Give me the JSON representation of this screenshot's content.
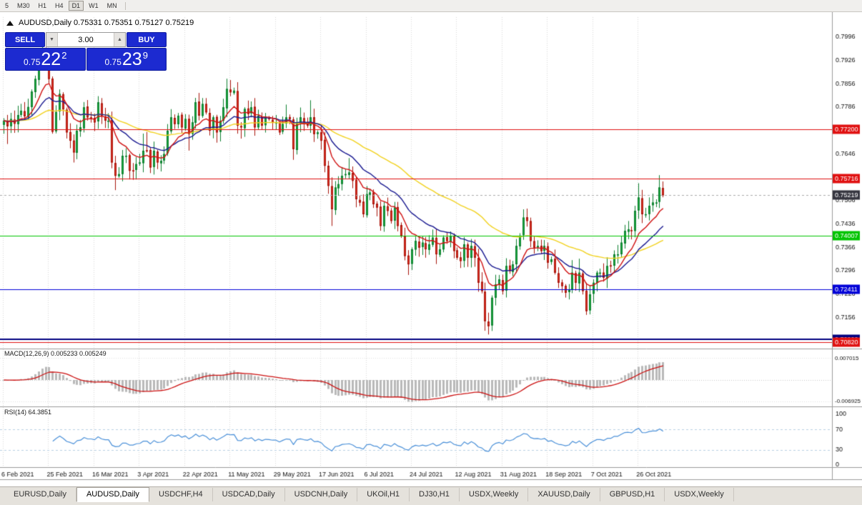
{
  "toolbar": {
    "timeframes": [
      "5",
      "M30",
      "H1",
      "H4",
      "D1",
      "W1",
      "MN"
    ],
    "active_timeframe": "D1"
  },
  "chart_header": {
    "title": "AUDUSD,Daily 0.75331 0.75351 0.75127 0.75219"
  },
  "trade_panel": {
    "sell_label": "SELL",
    "buy_label": "BUY",
    "lot_value": "3.00",
    "sell_price_prefix": "0.75",
    "sell_price_big": "22",
    "sell_price_sup": "2",
    "buy_price_prefix": "0.75",
    "buy_price_big": "23",
    "buy_price_sup": "9"
  },
  "indicator_macd": {
    "label": "MACD(12,26,9) 0.005233 0.005249"
  },
  "indicator_rsi": {
    "label": "RSI(14) 64.3851"
  },
  "chart_data": {
    "type": "candlestick",
    "symbol": "AUDUSD",
    "period": "Daily",
    "ohlc_display": {
      "open": 0.75331,
      "high": 0.75351,
      "low": 0.75127,
      "close": 0.75219
    },
    "ylim": [
      0.7065,
      0.8055
    ],
    "y_ticks": [
      "0.7996",
      "0.7926",
      "0.7856",
      "0.7786",
      "0.7716",
      "0.7646",
      "0.7576",
      "0.7506",
      "0.7436",
      "0.7366",
      "0.7296",
      "0.7226",
      "0.7156",
      "0.7086"
    ],
    "x_labels": [
      {
        "label": "6 Feb 2021",
        "index": 0
      },
      {
        "label": "25 Feb 2021",
        "index": 13
      },
      {
        "label": "16 Mar 2021",
        "index": 26
      },
      {
        "label": "3 Apr 2021",
        "index": 39
      },
      {
        "label": "22 Apr 2021",
        "index": 52
      },
      {
        "label": "11 May 2021",
        "index": 65
      },
      {
        "label": "29 May 2021",
        "index": 78
      },
      {
        "label": "17 Jun 2021",
        "index": 91
      },
      {
        "label": "6 Jul 2021",
        "index": 104
      },
      {
        "label": "24 Jul 2021",
        "index": 117
      },
      {
        "label": "12 Aug 2021",
        "index": 130
      },
      {
        "label": "31 Aug 2021",
        "index": 143
      },
      {
        "label": "18 Sep 2021",
        "index": 156
      },
      {
        "label": "7 Oct 2021",
        "index": 169
      },
      {
        "label": "26 Oct 2021",
        "index": 182
      }
    ],
    "closes": [
      0.7745,
      0.7728,
      0.775,
      0.7736,
      0.7762,
      0.7775,
      0.7758,
      0.7786,
      0.7832,
      0.787,
      0.791,
      0.7945,
      0.7928,
      0.787,
      0.7712,
      0.7771,
      0.7825,
      0.7779,
      0.771,
      0.7685,
      0.765,
      0.7715,
      0.7725,
      0.7785,
      0.7755,
      0.7755,
      0.774,
      0.78,
      0.776,
      0.7745,
      0.7745,
      0.762,
      0.758,
      0.7585,
      0.764,
      0.764,
      0.7595,
      0.7595,
      0.7615,
      0.762,
      0.7655,
      0.7655,
      0.7605,
      0.7655,
      0.762,
      0.7625,
      0.7645,
      0.7715,
      0.7755,
      0.7735,
      0.776,
      0.7725,
      0.775,
      0.7705,
      0.774,
      0.78,
      0.776,
      0.7795,
      0.777,
      0.7715,
      0.7755,
      0.771,
      0.7745,
      0.7785,
      0.784,
      0.783,
      0.7835,
      0.773,
      0.7725,
      0.778,
      0.7765,
      0.7785,
      0.7725,
      0.776,
      0.773,
      0.7755,
      0.775,
      0.774,
      0.774,
      0.771,
      0.7735,
      0.7755,
      0.775,
      0.766,
      0.774,
      0.7755,
      0.774,
      0.773,
      0.7755,
      0.7705,
      0.771,
      0.7685,
      0.761,
      0.755,
      0.748,
      0.7545,
      0.7555,
      0.758,
      0.7585,
      0.759,
      0.7565,
      0.751,
      0.75,
      0.7465,
      0.7525,
      0.753,
      0.7495,
      0.7485,
      0.743,
      0.749,
      0.7475,
      0.7445,
      0.7485,
      0.743,
      0.74,
      0.734,
      0.7315,
      0.736,
      0.7385,
      0.7365,
      0.738,
      0.736,
      0.7375,
      0.7395,
      0.7345,
      0.736,
      0.7395,
      0.7385,
      0.74,
      0.7355,
      0.7335,
      0.7325,
      0.7375,
      0.7335,
      0.737,
      0.7335,
      0.726,
      0.7235,
      0.7145,
      0.713,
      0.7215,
      0.7255,
      0.727,
      0.7235,
      0.731,
      0.7295,
      0.7315,
      0.737,
      0.74,
      0.7455,
      0.7445,
      0.7385,
      0.7365,
      0.737,
      0.7355,
      0.737,
      0.732,
      0.733,
      0.729,
      0.726,
      0.725,
      0.723,
      0.724,
      0.729,
      0.726,
      0.729,
      0.7235,
      0.7175,
      0.7225,
      0.726,
      0.729,
      0.729,
      0.7275,
      0.731,
      0.731,
      0.7345,
      0.7345,
      0.738,
      0.7415,
      0.742,
      0.7415,
      0.7475,
      0.7515,
      0.7465,
      0.7465,
      0.749,
      0.75,
      0.75,
      0.7545,
      0.7522
    ],
    "levels": [
      {
        "value": 0.772,
        "label": "0.77200",
        "color": "#e01010",
        "width": 1
      },
      {
        "value": 0.75716,
        "label": "0.75716",
        "color": "#e01010",
        "width": 1
      },
      {
        "value": 0.74007,
        "label": "0.74007",
        "color": "#00c400",
        "width": 1
      },
      {
        "value": 0.72411,
        "label": "0.72411",
        "color": "#0000d8",
        "width": 1
      },
      {
        "value": 0.709,
        "label": "0.70900",
        "color": "#000080",
        "width": 2
      },
      {
        "value": 0.7082,
        "label": "0.70820",
        "color": "#e01010",
        "width": 1
      }
    ],
    "bid": {
      "value": 0.75219,
      "label": "0.75219",
      "color": "#35353f"
    },
    "moving_averages": [
      {
        "period": 55,
        "color": "#f2d21f"
      },
      {
        "period": 21,
        "color": "#181890"
      },
      {
        "period": 10,
        "color": "#d01010"
      }
    ],
    "candle_up_color": "#19a83d",
    "candle_up_border": "#0e8030",
    "candle_down_color": "#e03224",
    "candle_down_border": "#a8150c",
    "macd": {
      "fast": 12,
      "slow": 26,
      "signal": 9,
      "value": 0.005233,
      "signal_value": 0.005249,
      "ylim": [
        -0.0078,
        0.0078
      ],
      "ticks": [
        {
          "value": 0.007015,
          "label": "0.007015"
        },
        {
          "value": -0.006925,
          "label": "-0.006925"
        }
      ],
      "histogram_color": "#b9b9b9",
      "signal_color": "#cc1111"
    },
    "rsi": {
      "period": 14,
      "value": 64.3851,
      "ylim": [
        0,
        100
      ],
      "ticks": [
        "100",
        "70",
        "30",
        "0"
      ],
      "guides": [
        70,
        30
      ],
      "color": "#4a90d9"
    }
  },
  "tabs": {
    "active_index": 1,
    "items": [
      "EURUSD,Daily",
      "AUDUSD,Daily",
      "USDCHF,H4",
      "USDCAD,Daily",
      "USDCNH,Daily",
      "UKOil,H1",
      "DJ30,H1",
      "USDX,Weekly",
      "XAUUSD,Daily",
      "GBPUSD,H1",
      "USDX,Weekly"
    ]
  }
}
